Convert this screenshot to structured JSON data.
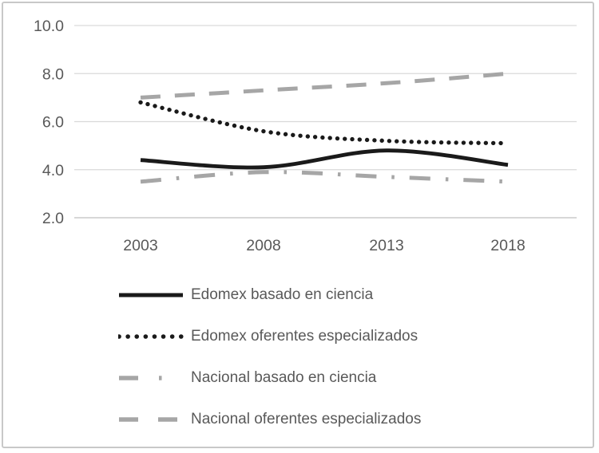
{
  "chart_data": {
    "type": "line",
    "title": "",
    "xlabel": "",
    "ylabel": "",
    "categories": [
      "2003",
      "2008",
      "2013",
      "2018"
    ],
    "series": [
      {
        "name": "Edomex basado en ciencia",
        "color": "#1a1a1a",
        "line_style": "solid",
        "values": [
          4.4,
          4.1,
          4.8,
          4.2
        ]
      },
      {
        "name": "Edomex oferentes especializados",
        "color": "#1a1a1a",
        "line_style": "dotted",
        "values": [
          6.8,
          5.6,
          5.2,
          5.1
        ]
      },
      {
        "name": "Nacional basado en ciencia",
        "color": "#a6a6a6",
        "line_style": "dash-dot",
        "values": [
          3.5,
          3.9,
          3.7,
          3.5
        ]
      },
      {
        "name": "Nacional oferentes especializados",
        "color": "#a6a6a6",
        "line_style": "dashed",
        "values": [
          7.0,
          7.3,
          7.6,
          8.0
        ]
      }
    ],
    "ylim": [
      2.0,
      10.0
    ],
    "yticks": [
      10.0,
      8.0,
      6.0,
      4.0,
      2.0
    ],
    "ytick_labels": [
      "10.0",
      "8.0",
      "6.0",
      "4.0",
      "2.0"
    ],
    "grid": true,
    "legend_position": "bottom-left",
    "colors": {
      "axis_text": "#595959",
      "gridline": "#d9d9d9",
      "axis_line": "#bfbfbf",
      "frame_border": "#c8c8c8",
      "background": "#ffffff"
    }
  }
}
